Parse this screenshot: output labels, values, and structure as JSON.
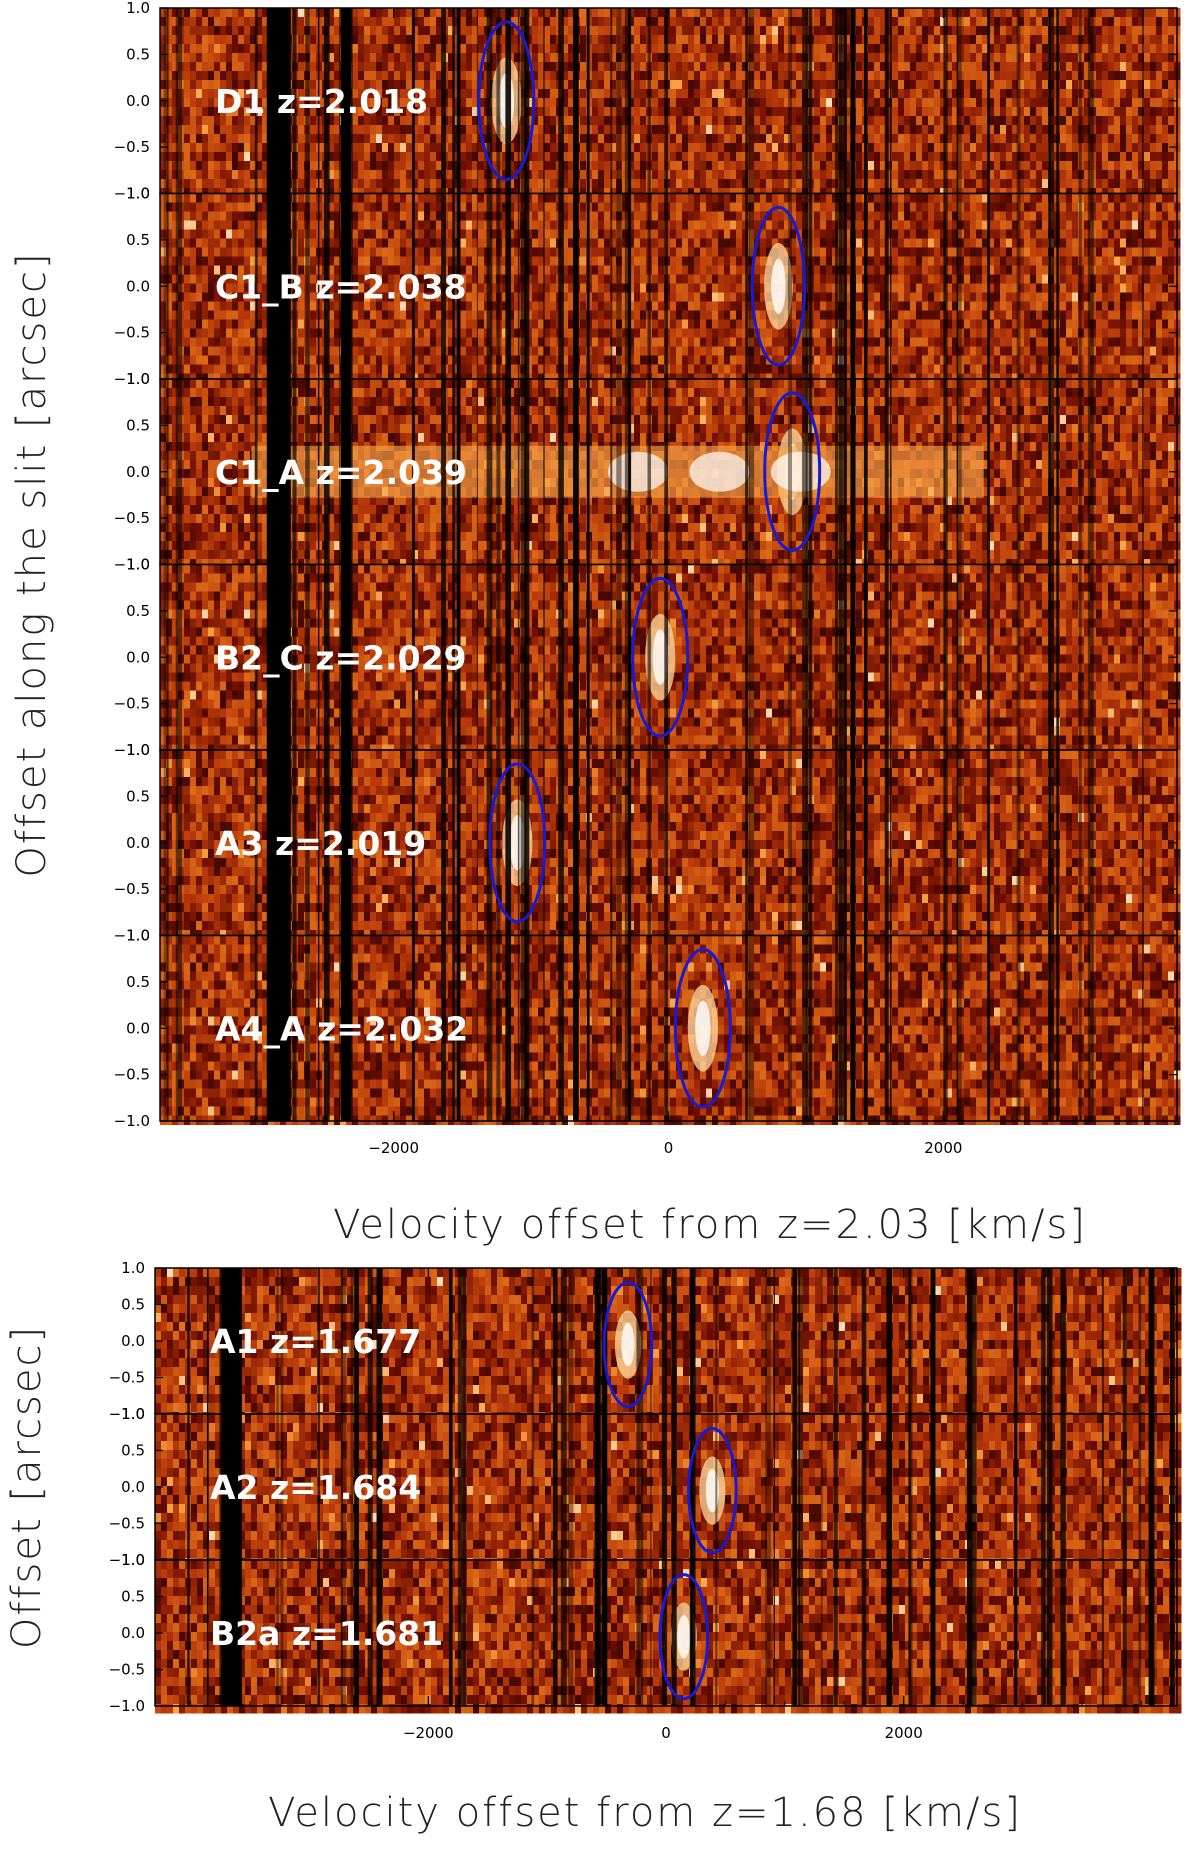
{
  "chart_data": [
    {
      "type": "heatmap",
      "xlabel": "Velocity offset from z=2.03 [km/s]",
      "ylabel": "Offset along the slit [arcsec]",
      "xlim": [
        -3700,
        3700
      ],
      "ylim": [
        -1.0,
        1.0
      ],
      "x_ticks": [
        -2000,
        0,
        2000
      ],
      "x_tick_labels": [
        "−2000",
        "0",
        "2000"
      ],
      "y_ticks": [
        1.0,
        0.5,
        0.0,
        -0.5,
        -1.0
      ],
      "y_tick_labels": [
        "1.0",
        "0.5",
        "0.0",
        "−0.5",
        "−1.0"
      ],
      "colormap": [
        "#000000",
        "#6a0d00",
        "#b83a0a",
        "#e0701a",
        "#f7a44a",
        "#ffffff"
      ],
      "marker_color": "#1a1acf",
      "panels": [
        {
          "name": "D1",
          "z": "2.018",
          "label": "D1  z=2.018",
          "ellipse_center": [
            -1180,
            0.0
          ],
          "ellipse_radii": [
            200,
            1.0
          ]
        },
        {
          "name": "C1_B",
          "z": "2.038",
          "label": "C1_B  z=2.038",
          "ellipse_center": [
            800,
            0.0
          ],
          "ellipse_radii": [
            190,
            1.0
          ]
        },
        {
          "name": "C1_A",
          "z": "2.039",
          "label": "C1_A  z=2.039",
          "ellipse_center": [
            900,
            0.0
          ],
          "ellipse_radii": [
            200,
            1.0
          ]
        },
        {
          "name": "B2_C",
          "z": "2.029",
          "label": "B2_C  z=2.029",
          "ellipse_center": [
            -60,
            0.0
          ],
          "ellipse_radii": [
            200,
            1.0
          ]
        },
        {
          "name": "A3",
          "z": "2.019",
          "label": "A3  z=2.019",
          "ellipse_center": [
            -1100,
            0.0
          ],
          "ellipse_radii": [
            200,
            1.0
          ]
        },
        {
          "name": "A4_A",
          "z": "2.032",
          "label": "A4_A  z=2.032",
          "ellipse_center": [
            250,
            0.0
          ],
          "ellipse_radii": [
            200,
            1.0
          ]
        }
      ]
    },
    {
      "type": "heatmap",
      "xlabel": "Velocity offset from z=1.68 [km/s]",
      "ylabel": "Offset [arcsec]",
      "xlim": [
        -4300,
        4300
      ],
      "ylim": [
        -1.0,
        1.0
      ],
      "x_ticks": [
        -2000,
        0,
        2000
      ],
      "x_tick_labels": [
        "−2000",
        "0",
        "2000"
      ],
      "y_ticks": [
        1.0,
        0.5,
        0.0,
        -0.5,
        -1.0
      ],
      "y_tick_labels": [
        "1.0",
        "0.5",
        "0.0",
        "−0.5",
        "−1.0"
      ],
      "colormap": [
        "#000000",
        "#6a0d00",
        "#b83a0a",
        "#e0701a",
        "#f7a44a",
        "#ffffff"
      ],
      "marker_color": "#1a1acf",
      "panels": [
        {
          "name": "A1",
          "z": "1.677",
          "label": "A1  z=1.677",
          "ellipse_center": [
            -320,
            -0.05
          ],
          "ellipse_radii": [
            200,
            1.0
          ]
        },
        {
          "name": "A2",
          "z": "1.684",
          "label": "A2  z=1.684",
          "ellipse_center": [
            390,
            -0.05
          ],
          "ellipse_radii": [
            200,
            1.0
          ]
        },
        {
          "name": "B2a",
          "z": "1.681",
          "label": "B2a  z=1.681",
          "ellipse_center": [
            150,
            -0.05
          ],
          "ellipse_radii": [
            200,
            1.0
          ]
        }
      ]
    }
  ]
}
